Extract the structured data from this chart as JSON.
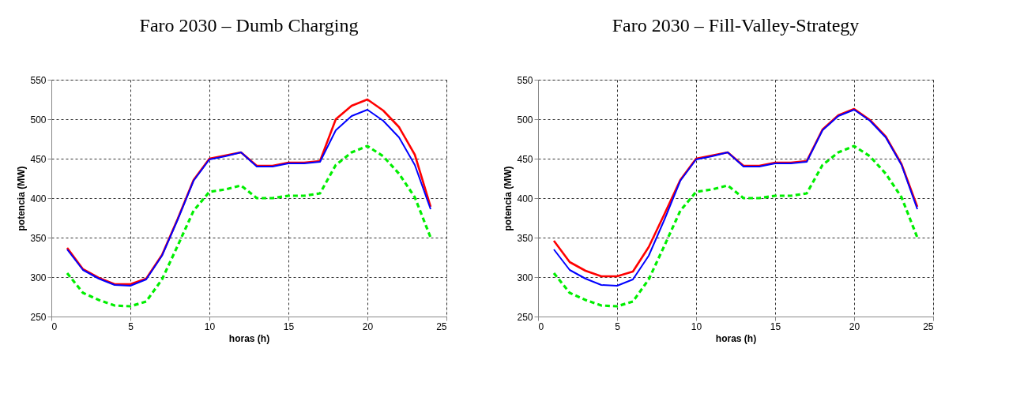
{
  "chart_data": [
    {
      "type": "line",
      "title": "Faro 2030 – Dumb Charging",
      "xlabel": "horas (h)",
      "ylabel": "potencia (MW)",
      "xlim": [
        0,
        25
      ],
      "xticks": [
        0,
        5,
        10,
        15,
        20,
        25
      ],
      "ylim": [
        250,
        550
      ],
      "yticks": [
        250,
        300,
        350,
        400,
        450,
        500,
        550
      ],
      "grid": true,
      "x": [
        1,
        2,
        3,
        4,
        5,
        6,
        7,
        8,
        9,
        10,
        11,
        12,
        13,
        14,
        15,
        16,
        17,
        18,
        19,
        20,
        21,
        22,
        23,
        24
      ],
      "series": [
        {
          "color": "#00ee00",
          "line_style": "dashed",
          "values": [
            305,
            280,
            271,
            264,
            263,
            269,
            297,
            340,
            384,
            408,
            411,
            416,
            400,
            400,
            403,
            403,
            406,
            442,
            458,
            466,
            453,
            431,
            401,
            350
          ]
        },
        {
          "color": "#ff0000",
          "line_style": "solid",
          "values": [
            337,
            310,
            299,
            291,
            291,
            298,
            328,
            374,
            423,
            450,
            454,
            458,
            441,
            441,
            445,
            445,
            447,
            500,
            517,
            525,
            511,
            490,
            455,
            389
          ]
        },
        {
          "color": "#0000ff",
          "line_style": "solid",
          "values": [
            335,
            309,
            298,
            290,
            289,
            297,
            327,
            373,
            422,
            449,
            453,
            458,
            440,
            440,
            444,
            444,
            446,
            486,
            504,
            512,
            498,
            477,
            442,
            386
          ]
        }
      ]
    },
    {
      "type": "line",
      "title": "Faro 2030 – Fill-Valley-Strategy",
      "xlabel": "horas (h)",
      "ylabel": "potencia (MW)",
      "xlim": [
        0,
        25
      ],
      "xticks": [
        0,
        5,
        10,
        15,
        20,
        25
      ],
      "ylim": [
        250,
        550
      ],
      "yticks": [
        250,
        300,
        350,
        400,
        450,
        500,
        550
      ],
      "grid": true,
      "x": [
        1,
        2,
        3,
        4,
        5,
        6,
        7,
        8,
        9,
        10,
        11,
        12,
        13,
        14,
        15,
        16,
        17,
        18,
        19,
        20,
        21,
        22,
        23,
        24
      ],
      "series": [
        {
          "color": "#00ee00",
          "line_style": "dashed",
          "values": [
            305,
            280,
            271,
            264,
            263,
            269,
            297,
            340,
            384,
            408,
            411,
            416,
            400,
            400,
            403,
            403,
            406,
            442,
            458,
            466,
            453,
            431,
            401,
            350
          ]
        },
        {
          "color": "#ff0000",
          "line_style": "solid",
          "values": [
            346,
            319,
            308,
            301,
            301,
            307,
            338,
            380,
            423,
            450,
            454,
            458,
            441,
            441,
            445,
            445,
            447,
            487,
            505,
            513,
            499,
            478,
            443,
            389
          ]
        },
        {
          "color": "#0000ff",
          "line_style": "solid",
          "values": [
            335,
            309,
            298,
            290,
            289,
            297,
            327,
            373,
            422,
            449,
            453,
            458,
            440,
            440,
            444,
            444,
            446,
            486,
            504,
            512,
            498,
            477,
            442,
            386
          ]
        }
      ]
    }
  ]
}
